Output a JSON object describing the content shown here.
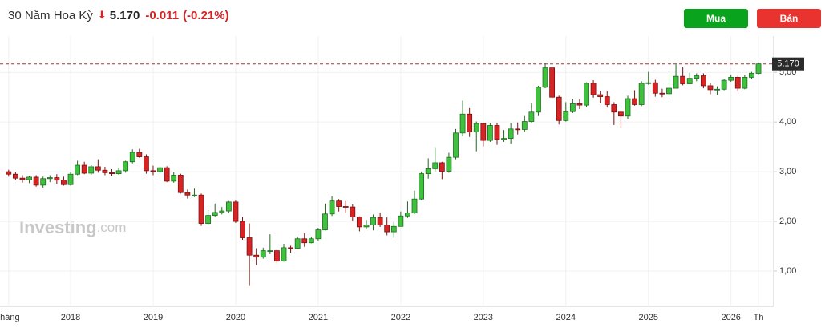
{
  "header": {
    "title": "30 Năm Hoa Kỳ",
    "price": "5.170",
    "change": "-0.011",
    "change_pct": "(-0.21%)"
  },
  "buttons": {
    "buy": "Mua",
    "sell": "Bán"
  },
  "watermark": {
    "brand": "Investing",
    "suffix": ".com"
  },
  "chart_data": {
    "type": "candlestick",
    "grid": true,
    "up_color": "#3ec23e",
    "down_color": "#d62424",
    "ylim": [
      0.29,
      5.73
    ],
    "yticks": [
      {
        "value": 1,
        "label": "1,00"
      },
      {
        "value": 2,
        "label": "2,00"
      },
      {
        "value": 3,
        "label": "3,00"
      },
      {
        "value": 4,
        "label": "4,00"
      },
      {
        "value": 5,
        "label": "5,00"
      }
    ],
    "last_price": {
      "value": 5.17,
      "label": "5,170"
    },
    "categories": [
      "tháng",
      null,
      null,
      null,
      null,
      null,
      null,
      null,
      null,
      "2018",
      null,
      null,
      null,
      null,
      null,
      null,
      null,
      null,
      null,
      null,
      null,
      "2019",
      null,
      null,
      null,
      null,
      null,
      null,
      null,
      null,
      null,
      null,
      null,
      "2020",
      null,
      null,
      null,
      null,
      null,
      null,
      null,
      null,
      null,
      null,
      null,
      "2021",
      null,
      null,
      null,
      null,
      null,
      null,
      null,
      null,
      null,
      null,
      null,
      "2022",
      null,
      null,
      null,
      null,
      null,
      null,
      null,
      null,
      null,
      null,
      null,
      "2023",
      null,
      null,
      null,
      null,
      null,
      null,
      null,
      null,
      null,
      null,
      null,
      "2024",
      null,
      null,
      null,
      null,
      null,
      null,
      null,
      null,
      null,
      null,
      null,
      "2025",
      null,
      null,
      null,
      null,
      null,
      null,
      null,
      null,
      null,
      null,
      null,
      "2026",
      null,
      null,
      null,
      "Th"
    ],
    "open": [
      3.0,
      2.95,
      2.87,
      2.84,
      2.89,
      2.73,
      2.86,
      2.88,
      2.83,
      2.74,
      2.95,
      3.13,
      2.97,
      3.1,
      3.03,
      2.98,
      2.96,
      3.02,
      3.2,
      3.39,
      3.3,
      3.02,
      3.0,
      3.08,
      2.81,
      2.93,
      2.58,
      2.53,
      2.53,
      1.96,
      2.12,
      2.18,
      2.21,
      2.39,
      2.0,
      1.67,
      1.32,
      1.28,
      1.41,
      1.41,
      1.2,
      1.47,
      1.46,
      1.65,
      1.57,
      1.65,
      1.83,
      2.15,
      2.41,
      2.3,
      2.29,
      2.09,
      1.89,
      1.93,
      2.08,
      1.93,
      1.79,
      1.9,
      2.11,
      2.17,
      2.45,
      2.96,
      3.06,
      3.18,
      3.01,
      3.29,
      3.78,
      4.16,
      3.8,
      3.97,
      3.63,
      3.93,
      3.65,
      3.67,
      3.86,
      3.85,
      4.01,
      4.2,
      4.7,
      5.09,
      4.5,
      4.03,
      4.21,
      4.37,
      4.34,
      4.78,
      4.55,
      4.51,
      4.35,
      4.2,
      4.12,
      4.47,
      4.35,
      4.78,
      4.79,
      4.58,
      4.57,
      4.68,
      4.92,
      4.77,
      4.88,
      4.93,
      4.73,
      4.65,
      4.66,
      4.84,
      4.9,
      4.68,
      4.9,
      4.98
    ],
    "high": [
      3.04,
      2.99,
      2.93,
      2.92,
      2.93,
      2.9,
      2.93,
      2.95,
      2.9,
      2.99,
      3.22,
      3.2,
      3.13,
      3.25,
      3.1,
      3.05,
      3.07,
      3.22,
      3.45,
      3.46,
      3.35,
      3.12,
      3.1,
      3.11,
      2.99,
      2.96,
      2.64,
      2.66,
      2.56,
      2.23,
      2.36,
      2.29,
      2.41,
      2.42,
      2.09,
      1.96,
      1.46,
      1.47,
      1.74,
      1.45,
      1.55,
      1.51,
      1.69,
      1.76,
      1.69,
      1.87,
      2.36,
      2.51,
      2.45,
      2.41,
      2.34,
      2.1,
      2.03,
      2.14,
      2.18,
      2.08,
      1.99,
      2.2,
      2.4,
      2.62,
      3.0,
      3.27,
      3.49,
      3.2,
      3.38,
      3.86,
      4.43,
      4.28,
      4.01,
      3.99,
      3.98,
      3.98,
      3.84,
      3.98,
      3.99,
      4.12,
      4.38,
      4.73,
      5.18,
      5.11,
      4.53,
      4.4,
      4.47,
      4.46,
      4.8,
      4.84,
      4.63,
      4.62,
      4.4,
      4.23,
      4.53,
      4.64,
      4.82,
      5.01,
      4.85,
      4.67,
      4.98,
      5.16,
      5.1,
      4.99,
      4.98,
      4.98,
      4.78,
      4.72,
      4.87,
      4.95,
      4.93,
      4.95,
      5.01,
      5.2
    ],
    "low": [
      2.9,
      2.83,
      2.78,
      2.77,
      2.7,
      2.68,
      2.79,
      2.76,
      2.72,
      2.72,
      2.93,
      2.95,
      2.94,
      2.98,
      2.93,
      2.92,
      2.94,
      2.98,
      3.17,
      3.28,
      2.96,
      2.93,
      2.96,
      2.79,
      2.78,
      2.56,
      2.46,
      2.49,
      1.91,
      1.93,
      2.1,
      2.14,
      2.17,
      1.97,
      1.63,
      0.7,
      1.12,
      1.25,
      1.34,
      1.16,
      1.19,
      1.37,
      1.45,
      1.49,
      1.56,
      1.61,
      1.82,
      2.11,
      2.2,
      2.17,
      2.01,
      1.8,
      1.85,
      1.82,
      1.89,
      1.72,
      1.67,
      1.9,
      2.07,
      2.15,
      2.43,
      2.86,
      3.01,
      2.85,
      2.98,
      3.25,
      3.71,
      3.7,
      3.41,
      3.51,
      3.6,
      3.54,
      3.6,
      3.56,
      3.75,
      3.8,
      3.99,
      4.12,
      4.68,
      4.48,
      3.95,
      4.01,
      4.18,
      4.26,
      4.31,
      4.49,
      4.38,
      4.29,
      3.94,
      3.88,
      4.06,
      4.33,
      4.32,
      4.75,
      4.51,
      4.5,
      4.5,
      4.68,
      4.74,
      4.76,
      4.82,
      4.68,
      4.56,
      4.55,
      4.64,
      4.81,
      4.62,
      4.66,
      4.86,
      4.96
    ],
    "close": [
      2.95,
      2.87,
      2.84,
      2.89,
      2.73,
      2.86,
      2.88,
      2.83,
      2.74,
      2.95,
      3.13,
      2.97,
      3.1,
      3.03,
      2.98,
      2.96,
      3.02,
      3.2,
      3.39,
      3.3,
      3.02,
      3.0,
      3.08,
      2.81,
      2.93,
      2.58,
      2.53,
      2.53,
      1.96,
      2.12,
      2.18,
      2.21,
      2.39,
      2.0,
      1.67,
      1.32,
      1.28,
      1.41,
      1.41,
      1.2,
      1.47,
      1.46,
      1.65,
      1.57,
      1.65,
      1.83,
      2.15,
      2.41,
      2.3,
      2.29,
      2.09,
      1.89,
      1.93,
      2.08,
      1.93,
      1.79,
      1.9,
      2.11,
      2.17,
      2.45,
      2.96,
      3.06,
      3.18,
      3.01,
      3.29,
      3.78,
      4.16,
      3.8,
      3.97,
      3.63,
      3.93,
      3.65,
      3.67,
      3.86,
      3.85,
      4.01,
      4.2,
      4.7,
      5.09,
      4.5,
      4.03,
      4.21,
      4.37,
      4.34,
      4.78,
      4.55,
      4.51,
      4.35,
      4.2,
      4.12,
      4.47,
      4.35,
      4.78,
      4.79,
      4.58,
      4.57,
      4.68,
      4.92,
      4.77,
      4.88,
      4.93,
      4.73,
      4.65,
      4.66,
      4.84,
      4.9,
      4.68,
      4.9,
      4.98,
      5.17
    ]
  }
}
